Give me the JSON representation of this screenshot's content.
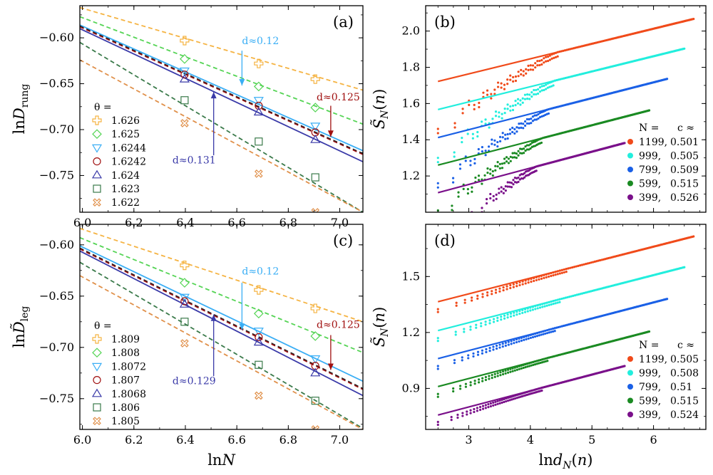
{
  "chart_data": [
    {
      "type": "line",
      "panel": "(a)",
      "xlabel": "lnN",
      "ylabel": "lnD_rung",
      "xlim": [
        5.99,
        7.09
      ],
      "ylim": [
        -0.79,
        -0.565
      ],
      "xticks": [
        6.0,
        6.2,
        6.4,
        6.6,
        6.8,
        7.0
      ],
      "xtick_labels": [
        "6.0",
        "6.2",
        "6.4",
        "6.6",
        "6.8",
        "7.0"
      ],
      "yticks": [
        -0.6,
        -0.65,
        -0.7,
        -0.75
      ],
      "ytick_labels": [
        "−0.60",
        "−0.65",
        "−0.70",
        "−0.75"
      ],
      "legend_title": "θ =",
      "series": [
        {
          "name": "1.626",
          "color": "#f5b342",
          "marker": "plus",
          "line": "dashed",
          "x": [
            6.397,
            6.685,
            6.905
          ],
          "y": [
            -0.603,
            -0.628,
            -0.645
          ],
          "fit": [
            [
              5.99,
              -0.567
            ],
            [
              7.09,
              -0.657
            ]
          ]
        },
        {
          "name": "1.625",
          "color": "#55d455",
          "marker": "diamond",
          "line": "dashed",
          "x": [
            6.397,
            6.685,
            6.905
          ],
          "y": [
            -0.623,
            -0.653,
            -0.676
          ],
          "fit": [
            [
              5.99,
              -0.577
            ],
            [
              7.09,
              -0.694
            ]
          ]
        },
        {
          "name": "1.6244",
          "color": "#3aaef5",
          "marker": "tri-down",
          "line": "solid",
          "x": [
            6.397,
            6.685,
            6.905
          ],
          "y": [
            -0.636,
            -0.668,
            -0.696
          ],
          "fit": [
            [
              5.99,
              -0.586
            ],
            [
              7.09,
              -0.723
            ]
          ]
        },
        {
          "name": "1.6242",
          "color": "#a01010",
          "marker": "circle",
          "line": "dashed",
          "x": [
            6.397,
            6.685,
            6.905
          ],
          "y": [
            -0.64,
            -0.674,
            -0.703
          ],
          "fit": [
            [
              5.99,
              -0.588
            ],
            [
              7.09,
              -0.727
            ]
          ]
        },
        {
          "name": "1.624",
          "color": "#3a3aa8",
          "marker": "tri-up",
          "line": "solid",
          "x": [
            6.397,
            6.685,
            6.905
          ],
          "y": [
            -0.645,
            -0.681,
            -0.711
          ],
          "fit": [
            [
              5.99,
              -0.59
            ],
            [
              7.09,
              -0.735
            ]
          ]
        },
        {
          "name": "1.623",
          "color": "#3a7a4a",
          "marker": "square",
          "line": "dashed",
          "x": [
            6.397,
            6.685,
            6.905
          ],
          "y": [
            -0.668,
            -0.713,
            -0.752
          ],
          "fit": [
            [
              5.99,
              -0.605
            ],
            [
              7.09,
              -0.79
            ]
          ]
        },
        {
          "name": "1.622",
          "color": "#e0904a",
          "marker": "x-box",
          "line": "dashed",
          "x": [
            6.397,
            6.685,
            6.905
          ],
          "y": [
            -0.693,
            -0.748,
            -0.79
          ],
          "fit": [
            [
              5.99,
              -0.624
            ],
            [
              7.09,
              -0.79
            ]
          ]
        }
      ],
      "extra_lines": [
        {
          "color": "#222222",
          "style": "dashed",
          "fit": [
            [
              5.99,
              -0.587
            ],
            [
              7.09,
              -0.726
            ]
          ]
        }
      ],
      "annotations": [
        {
          "text": "d≈0.12",
          "color": "#3aaef5",
          "text_x": 6.62,
          "text_y": -0.607,
          "arrow_from": [
            6.62,
            -0.614
          ],
          "arrow_to": [
            6.62,
            -0.652
          ]
        },
        {
          "text": "d≈0.125",
          "color": "#a01010",
          "text_x": 6.91,
          "text_y": -0.668,
          "arrow_from": [
            6.965,
            -0.674
          ],
          "arrow_to": [
            6.965,
            -0.708
          ]
        },
        {
          "text": "d≈0.131",
          "color": "#3a3aa8",
          "text_x": 6.35,
          "text_y": -0.737,
          "arrow_from": [
            6.51,
            -0.728
          ],
          "arrow_to": [
            6.51,
            -0.659
          ]
        }
      ]
    },
    {
      "type": "line",
      "panel": "(c)",
      "xlabel": "lnN",
      "ylabel": "lnD̃_leg",
      "xlim": [
        5.99,
        7.09
      ],
      "ylim": [
        -0.78,
        -0.58
      ],
      "xticks": [
        6.0,
        6.2,
        6.4,
        6.6,
        6.8,
        7.0
      ],
      "xtick_labels": [
        "6.0",
        "6.2",
        "6.4",
        "6.6",
        "6.8",
        "7.0"
      ],
      "yticks": [
        -0.6,
        -0.65,
        -0.7,
        -0.75
      ],
      "ytick_labels": [
        "−0.60",
        "−0.65",
        "−0.70",
        "−0.75"
      ],
      "legend_title": "θ =",
      "series": [
        {
          "name": "1.809",
          "color": "#f5b342",
          "marker": "plus",
          "line": "dashed",
          "x": [
            6.397,
            6.685,
            6.905
          ],
          "y": [
            -0.62,
            -0.644,
            -0.662
          ],
          "fit": [
            [
              5.99,
              -0.584
            ],
            [
              7.09,
              -0.675
            ]
          ]
        },
        {
          "name": "1.808",
          "color": "#55d455",
          "marker": "diamond",
          "line": "dashed",
          "x": [
            6.397,
            6.685,
            6.905
          ],
          "y": [
            -0.637,
            -0.667,
            -0.689
          ],
          "fit": [
            [
              5.99,
              -0.593
            ],
            [
              7.09,
              -0.705
            ]
          ]
        },
        {
          "name": "1.8072",
          "color": "#3aaef5",
          "marker": "tri-down",
          "line": "solid",
          "x": [
            6.397,
            6.685,
            6.905
          ],
          "y": [
            -0.651,
            -0.684,
            -0.711
          ],
          "fit": [
            [
              5.99,
              -0.601
            ],
            [
              7.09,
              -0.733
            ]
          ]
        },
        {
          "name": "1.807",
          "color": "#a01010",
          "marker": "circle",
          "line": "dashed",
          "x": [
            6.397,
            6.685,
            6.905
          ],
          "y": [
            -0.655,
            -0.69,
            -0.718
          ],
          "fit": [
            [
              5.99,
              -0.604
            ],
            [
              7.09,
              -0.741
            ]
          ]
        },
        {
          "name": "1.8068",
          "color": "#3a3aa8",
          "marker": "tri-up",
          "line": "solid",
          "x": [
            6.397,
            6.685,
            6.905
          ],
          "y": [
            -0.658,
            -0.695,
            -0.725
          ],
          "fit": [
            [
              5.99,
              -0.606
            ],
            [
              7.09,
              -0.747
            ]
          ]
        },
        {
          "name": "1.806",
          "color": "#3a7a4a",
          "marker": "square",
          "line": "dashed",
          "x": [
            6.397,
            6.685,
            6.905
          ],
          "y": [
            -0.675,
            -0.717,
            -0.752
          ],
          "fit": [
            [
              5.99,
              -0.617
            ],
            [
              7.09,
              -0.779
            ]
          ]
        },
        {
          "name": "1.805",
          "color": "#e0904a",
          "marker": "x-box",
          "line": "dashed",
          "x": [
            6.397,
            6.685,
            6.905
          ],
          "y": [
            -0.696,
            -0.747,
            -0.78
          ],
          "fit": [
            [
              5.99,
              -0.63
            ],
            [
              7.09,
              -0.78
            ]
          ]
        }
      ],
      "extra_lines": [
        {
          "color": "#222222",
          "style": "dashed",
          "fit": [
            [
              5.99,
              -0.603
            ],
            [
              7.09,
              -0.74
            ]
          ]
        }
      ],
      "annotations": [
        {
          "text": "d≈0.12",
          "color": "#3aaef5",
          "text_x": 6.62,
          "text_y": -0.629,
          "arrow_from": [
            6.62,
            -0.637
          ],
          "arrow_to": [
            6.62,
            -0.683
          ]
        },
        {
          "text": "d≈0.125",
          "color": "#a01010",
          "text_x": 6.91,
          "text_y": -0.681,
          "arrow_from": [
            6.965,
            -0.688
          ],
          "arrow_to": [
            6.965,
            -0.722
          ]
        },
        {
          "text": "d≈0.129",
          "color": "#3a3aa8",
          "text_x": 6.35,
          "text_y": -0.736,
          "arrow_from": [
            6.51,
            -0.728
          ],
          "arrow_to": [
            6.51,
            -0.668
          ]
        }
      ]
    },
    {
      "type": "scatter",
      "panel": "(b)",
      "xlabel": "",
      "ylabel": "S̃_N(n)",
      "xlim": [
        2.3,
        6.85
      ],
      "ylim": [
        1.0,
        2.14
      ],
      "xticks": [
        3,
        4,
        5,
        6
      ],
      "xtick_labels": [],
      "yticks": [
        1.2,
        1.4,
        1.6,
        1.8,
        2.0
      ],
      "ytick_labels": [
        "1.2",
        "1.4",
        "1.6",
        "1.8",
        "2.0"
      ],
      "legend_header": [
        "N =",
        "c ≈"
      ],
      "series": [
        {
          "name": "1199",
          "c": "0.501",
          "color": "#f04a1a",
          "fit": [
            [
              2.5,
              1.722
            ],
            [
              6.65,
              2.067
            ]
          ],
          "dots_start": [
            2.5,
            1.46
          ],
          "dots_join": 4.45
        },
        {
          "name": "999",
          "c": "0.505",
          "color": "#22eedd",
          "fit": [
            [
              2.5,
              1.567
            ],
            [
              6.5,
              1.903
            ]
          ],
          "dots_start": [
            2.5,
            1.3
          ],
          "dots_join": 4.4
        },
        {
          "name": "799",
          "c": "0.509",
          "color": "#1a60e6",
          "fit": [
            [
              2.5,
              1.412
            ],
            [
              6.22,
              1.736
            ]
          ],
          "dots_start": [
            2.5,
            1.16
          ],
          "dots_join": 4.3
        },
        {
          "name": "599",
          "c": "0.515",
          "color": "#1a8a22",
          "fit": [
            [
              2.5,
              1.26
            ],
            [
              5.93,
              1.562
            ]
          ],
          "dots_start": [
            2.5,
            1.01
          ],
          "dots_join": 4.2
        },
        {
          "name": "399",
          "c": "0.526",
          "color": "#7a108a",
          "fit": [
            [
              2.5,
              1.108
            ],
            [
              5.53,
              1.382
            ]
          ],
          "dots_start": [
            3.05,
            1.0
          ],
          "dots_join": 4.1
        }
      ]
    },
    {
      "type": "scatter",
      "panel": "(d)",
      "xlabel": "lnd_N(n)",
      "ylabel": "S̃_N(n)",
      "xlim": [
        2.3,
        6.85
      ],
      "ylim": [
        0.68,
        1.78
      ],
      "xticks": [
        3,
        4,
        5,
        6
      ],
      "xtick_labels": [
        "3",
        "4",
        "5",
        "6"
      ],
      "yticks": [
        0.9,
        1.2,
        1.5
      ],
      "ytick_labels": [
        "0.9",
        "1.2",
        "1.5"
      ],
      "legend_header": [
        "N =",
        "c ≈"
      ],
      "series": [
        {
          "name": "1199",
          "c": "0.505",
          "color": "#f04a1a",
          "fit": [
            [
              2.5,
              1.365
            ],
            [
              6.65,
              1.715
            ]
          ],
          "dots_start": [
            2.5,
            1.325
          ],
          "dots_join": 4.6
        },
        {
          "name": "999",
          "c": "0.508",
          "color": "#22eedd",
          "fit": [
            [
              2.5,
              1.21
            ],
            [
              6.5,
              1.55
            ]
          ],
          "dots_start": [
            2.5,
            1.17
          ],
          "dots_join": 4.5
        },
        {
          "name": "799",
          "c": "0.51",
          "color": "#1a60e6",
          "fit": [
            [
              2.5,
              1.06
            ],
            [
              6.22,
              1.38
            ]
          ],
          "dots_start": [
            2.5,
            1.02
          ],
          "dots_join": 4.4
        },
        {
          "name": "599",
          "c": "0.515",
          "color": "#1a8a22",
          "fit": [
            [
              2.5,
              0.91
            ],
            [
              5.93,
              1.205
            ]
          ],
          "dots_start": [
            2.5,
            0.87
          ],
          "dots_join": 4.3
        },
        {
          "name": "399",
          "c": "0.524",
          "color": "#7a108a",
          "fit": [
            [
              2.5,
              0.757
            ],
            [
              5.53,
              1.02
            ]
          ],
          "dots_start": [
            2.5,
            0.72
          ],
          "dots_join": 4.2
        }
      ]
    }
  ]
}
